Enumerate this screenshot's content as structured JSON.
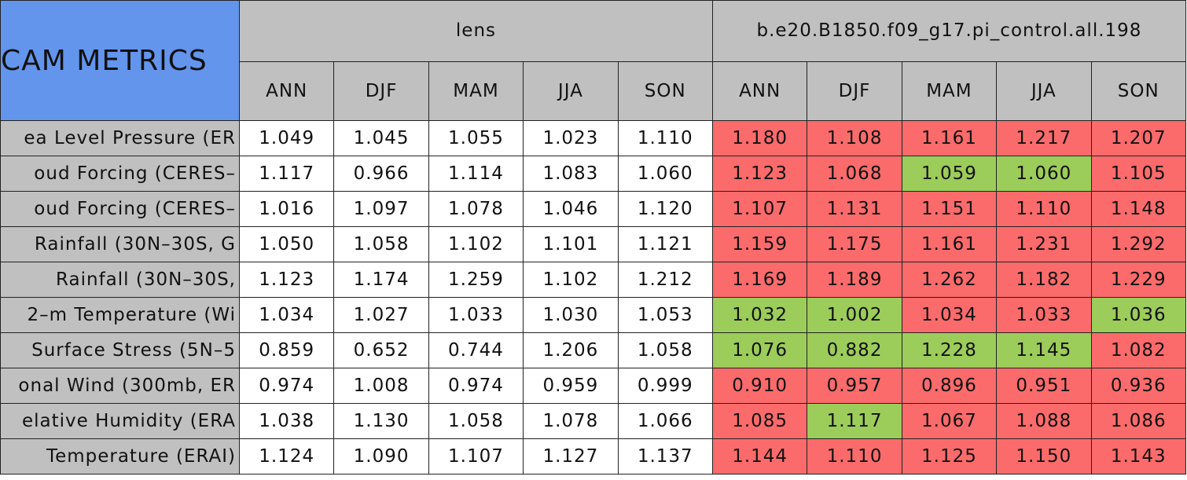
{
  "header": {
    "title": "CAM METRICS",
    "groups": [
      "lens",
      "b.e20.B1850.f09_g17.pi_control.all.198"
    ],
    "seasons": [
      "ANN",
      "DJF",
      "MAM",
      "JJA",
      "SON"
    ]
  },
  "colors": {
    "worse": "#fb6b6b",
    "better": "#9ccc5a"
  },
  "table": {
    "rows": [
      {
        "label": "ea Level Pressure (ER",
        "values": [
          "1.049",
          "1.045",
          "1.055",
          "1.023",
          "1.110",
          "1.180",
          "1.108",
          "1.161",
          "1.217",
          "1.207"
        ],
        "status": [
          "worse",
          "worse",
          "worse",
          "worse",
          "worse"
        ]
      },
      {
        "label": "oud Forcing (CERES–",
        "values": [
          "1.117",
          "0.966",
          "1.114",
          "1.083",
          "1.060",
          "1.123",
          "1.068",
          "1.059",
          "1.060",
          "1.105"
        ],
        "status": [
          "worse",
          "worse",
          "better",
          "better",
          "worse"
        ]
      },
      {
        "label": "oud Forcing (CERES–",
        "values": [
          "1.016",
          "1.097",
          "1.078",
          "1.046",
          "1.120",
          "1.107",
          "1.131",
          "1.151",
          "1.110",
          "1.148"
        ],
        "status": [
          "worse",
          "worse",
          "worse",
          "worse",
          "worse"
        ]
      },
      {
        "label": "Rainfall (30N–30S, G",
        "values": [
          "1.050",
          "1.058",
          "1.102",
          "1.101",
          "1.121",
          "1.159",
          "1.175",
          "1.161",
          "1.231",
          "1.292"
        ],
        "status": [
          "worse",
          "worse",
          "worse",
          "worse",
          "worse"
        ]
      },
      {
        "label": "Rainfall (30N–30S,",
        "values": [
          "1.123",
          "1.174",
          "1.259",
          "1.102",
          "1.212",
          "1.169",
          "1.189",
          "1.262",
          "1.182",
          "1.229"
        ],
        "status": [
          "worse",
          "worse",
          "worse",
          "worse",
          "worse"
        ]
      },
      {
        "label": "2–m Temperature (Wi",
        "values": [
          "1.034",
          "1.027",
          "1.033",
          "1.030",
          "1.053",
          "1.032",
          "1.002",
          "1.034",
          "1.033",
          "1.036"
        ],
        "status": [
          "better",
          "better",
          "worse",
          "worse",
          "better"
        ]
      },
      {
        "label": "Surface Stress (5N–5",
        "values": [
          "0.859",
          "0.652",
          "0.744",
          "1.206",
          "1.058",
          "1.076",
          "0.882",
          "1.228",
          "1.145",
          "1.082"
        ],
        "status": [
          "better",
          "better",
          "better",
          "better",
          "worse"
        ]
      },
      {
        "label": "onal Wind (300mb, ER",
        "values": [
          "0.974",
          "1.008",
          "0.974",
          "0.959",
          "0.999",
          "0.910",
          "0.957",
          "0.896",
          "0.951",
          "0.936"
        ],
        "status": [
          "worse",
          "worse",
          "worse",
          "worse",
          "worse"
        ]
      },
      {
        "label": "elative Humidity (ERA",
        "values": [
          "1.038",
          "1.130",
          "1.058",
          "1.078",
          "1.066",
          "1.085",
          "1.117",
          "1.067",
          "1.088",
          "1.086"
        ],
        "status": [
          "worse",
          "better",
          "worse",
          "worse",
          "worse"
        ]
      },
      {
        "label": "Temperature (ERAI)",
        "values": [
          "1.124",
          "1.090",
          "1.107",
          "1.127",
          "1.137",
          "1.144",
          "1.110",
          "1.125",
          "1.150",
          "1.143"
        ],
        "status": [
          "worse",
          "worse",
          "worse",
          "worse",
          "worse"
        ]
      }
    ]
  }
}
